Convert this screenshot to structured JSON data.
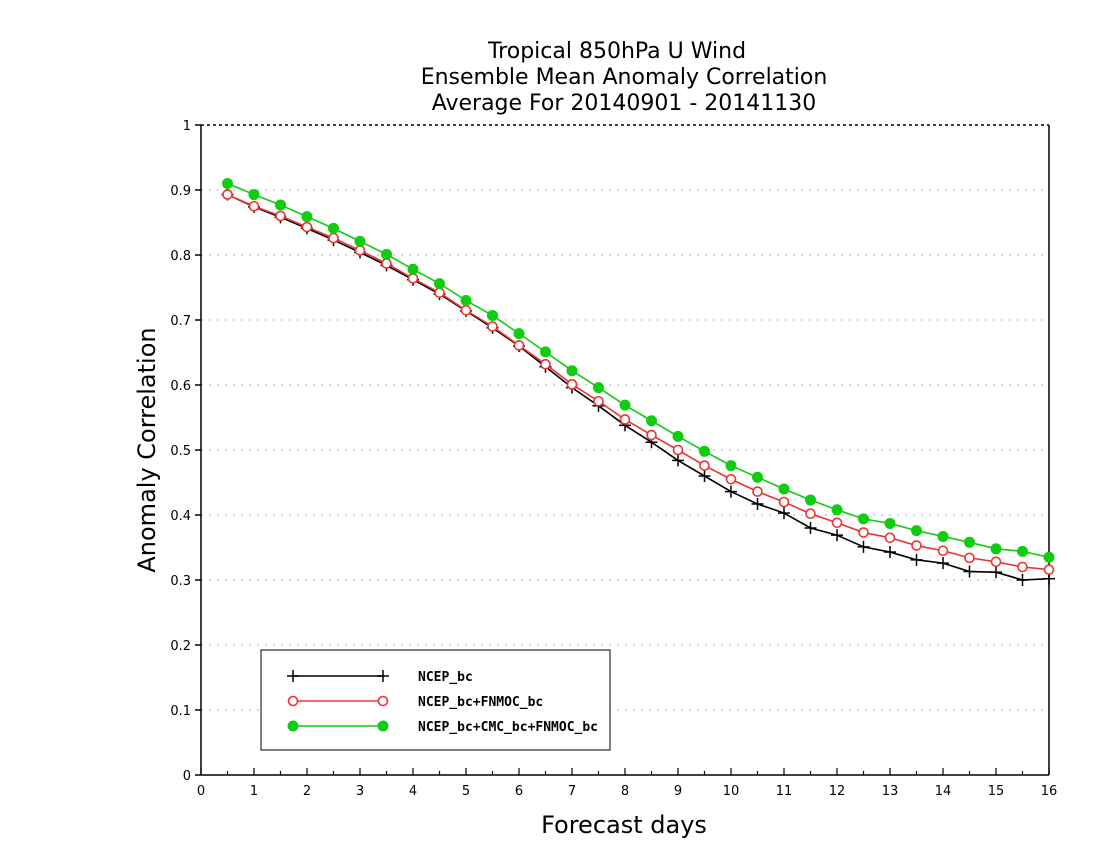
{
  "chart_data": {
    "type": "line",
    "title": [
      "Tropical 850hPa U Wind",
      "Ensemble Mean Anomaly Correlation",
      "Average For 20140901 - 20141130"
    ],
    "xlabel": "Forecast days",
    "ylabel": "Anomaly Correlation",
    "xlim": [
      0,
      16
    ],
    "ylim": [
      0,
      1
    ],
    "x_ticks": [
      "0",
      "1",
      "2",
      "3",
      "4",
      "5",
      "6",
      "7",
      "8",
      "9",
      "10",
      "11",
      "12",
      "13",
      "14",
      "15",
      "16"
    ],
    "y_ticks": [
      "0",
      "0.1",
      "0.2",
      "0.3",
      "0.4",
      "0.5",
      "0.6",
      "0.7",
      "0.8",
      "0.9",
      "1"
    ],
    "grid": true,
    "legend_position": "bottom-left",
    "x": [
      0.5,
      1,
      1.5,
      2,
      2.5,
      3,
      3.5,
      4,
      4.5,
      5,
      5.5,
      6,
      6.5,
      7,
      7.5,
      8,
      8.5,
      9,
      9.5,
      10,
      10.5,
      11,
      11.5,
      12,
      12.5,
      13,
      13.5,
      14,
      14.5,
      15,
      15.5,
      16
    ],
    "series": [
      {
        "name": "NCEP_bc",
        "color": "#000000",
        "marker": "plus",
        "values": [
          0.893,
          0.874,
          0.858,
          0.841,
          0.823,
          0.804,
          0.784,
          0.762,
          0.74,
          0.714,
          0.688,
          0.66,
          0.628,
          0.596,
          0.568,
          0.538,
          0.512,
          0.484,
          0.46,
          0.436,
          0.417,
          0.403,
          0.38,
          0.369,
          0.351,
          0.343,
          0.331,
          0.326,
          0.313,
          0.312,
          0.3,
          0.302
        ]
      },
      {
        "name": "NCEP_bc+FNMOC_bc",
        "color": "#ee3333",
        "marker": "open-circle",
        "values": [
          0.893,
          0.875,
          0.86,
          0.843,
          0.826,
          0.807,
          0.787,
          0.764,
          0.742,
          0.715,
          0.69,
          0.661,
          0.632,
          0.601,
          0.575,
          0.547,
          0.523,
          0.5,
          0.476,
          0.455,
          0.436,
          0.42,
          0.402,
          0.388,
          0.373,
          0.365,
          0.353,
          0.345,
          0.334,
          0.328,
          0.32,
          0.316
        ]
      },
      {
        "name": "NCEP_bc+CMC_bc+FNMOC_bc",
        "color": "#11cc11",
        "marker": "filled-circle",
        "values": [
          0.91,
          0.893,
          0.877,
          0.859,
          0.841,
          0.821,
          0.801,
          0.778,
          0.756,
          0.73,
          0.707,
          0.679,
          0.651,
          0.622,
          0.596,
          0.569,
          0.545,
          0.521,
          0.498,
          0.476,
          0.458,
          0.44,
          0.423,
          0.408,
          0.394,
          0.387,
          0.376,
          0.367,
          0.358,
          0.348,
          0.344,
          0.335
        ]
      }
    ]
  }
}
